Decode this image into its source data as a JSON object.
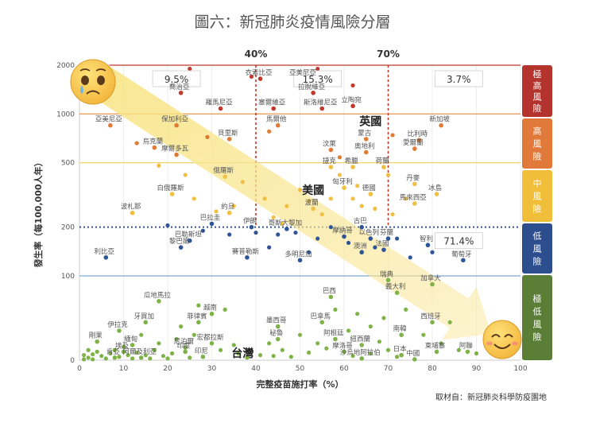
{
  "chart_data": {
    "type": "scatter",
    "title": "圖六：新冠肺炎疫情風險分層",
    "xlabel": "完整疫苗施打率（%）",
    "ylabel": "發生率（每100,000人年）",
    "source": "取材自：新冠肺炎科學防疫園地",
    "x_ticks": [
      0,
      10,
      20,
      30,
      40,
      50,
      60,
      70,
      80,
      90,
      100
    ],
    "y_ticks": [
      {
        "label": "2000",
        "value": 2000
      },
      {
        "label": "1000",
        "value": 1000
      },
      {
        "label": "500",
        "value": 500
      },
      {
        "label": "200",
        "value": 200
      },
      {
        "label": "100",
        "value": 100
      },
      {
        "label": "0",
        "value": 0
      }
    ],
    "xlim": [
      0,
      100
    ],
    "y_scale": "log-like (0 at bottom, 100–2000 logarithmic)",
    "thresholds": {
      "high_line": 1000,
      "mid_line": 500,
      "low_line": 200,
      "very_low_line": 100,
      "vacc_40": "40%",
      "vacc_70": "70%"
    },
    "region_percent_labels": [
      {
        "text": "9.5%",
        "x": 22,
        "y": 1650
      },
      {
        "text": "15.3%",
        "x": 54,
        "y": 1650
      },
      {
        "text": "3.7%",
        "x": 86,
        "y": 1650
      },
      {
        "text": "71.4%",
        "x": 86,
        "y": 165
      }
    ],
    "highlight_labels": [
      {
        "text": "英國",
        "x": 66,
        "y": 850
      },
      {
        "text": "美國",
        "x": 53,
        "y": 320
      },
      {
        "text": "台灣",
        "x": 37,
        "y": 4
      }
    ],
    "risk_levels": [
      {
        "label": "極高風險",
        "color": "#b5332d"
      },
      {
        "label": "高風險",
        "color": "#e0793a"
      },
      {
        "label": "中風險",
        "color": "#f1be3a"
      },
      {
        "label": "低風險",
        "color": "#2c4d8e"
      },
      {
        "label": "極低風險",
        "color": "#5b7e37"
      }
    ],
    "colors": {
      "very_high": "#c0392b",
      "high": "#e07a34",
      "medium": "#f0c044",
      "low": "#2f5597",
      "very_low": "#7fb348",
      "line_very_high": "#c0392b",
      "line_high": "#e8a060",
      "line_mid": "#f3d36e",
      "line_low": "#2f5597",
      "line_very_low": "#7ea6cc"
    },
    "labeled_points": [
      {
        "name": "衣索比亞",
        "x": 41,
        "y": 1650,
        "level": "very_high",
        "lx": -10,
        "ly": 0
      },
      {
        "name": "亞美尼亞",
        "x": 51,
        "y": 1650,
        "level": "very_high",
        "lx": 0,
        "ly": 0
      },
      {
        "name": "喬治亞",
        "x": 23,
        "y": 1350,
        "level": "very_high",
        "lx": 0,
        "ly": 0
      },
      {
        "name": "拉脫維亞",
        "x": 53,
        "y": 1350,
        "level": "very_high",
        "lx": 0,
        "ly": 0
      },
      {
        "name": "塞爾維亞",
        "x": 44,
        "y": 1080,
        "level": "very_high",
        "lx": 0,
        "ly": 0
      },
      {
        "name": "羅馬尼亞",
        "x": 32,
        "y": 1080,
        "level": "very_high",
        "lx": 0,
        "ly": 0
      },
      {
        "name": "斯洛維尼亞",
        "x": 55,
        "y": 1080,
        "level": "very_high",
        "lx": 0,
        "ly": 0
      },
      {
        "name": "立陶宛",
        "x": 62,
        "y": 1120,
        "level": "very_high",
        "lx": 0,
        "ly": 0
      },
      {
        "name": "亞美尼亞",
        "x": 7,
        "y": 850,
        "level": "high",
        "lx": 0,
        "ly": 0
      },
      {
        "name": "保加利亞",
        "x": 22,
        "y": 850,
        "level": "high",
        "lx": 0,
        "ly": 0
      },
      {
        "name": "馬爾他",
        "x": 45,
        "y": 850,
        "level": "high",
        "lx": 0,
        "ly": 0
      },
      {
        "name": "新加坡",
        "x": 82,
        "y": 850,
        "level": "high",
        "lx": 0,
        "ly": 0
      },
      {
        "name": "貝里斯",
        "x": 34,
        "y": 700,
        "level": "high",
        "lx": 0,
        "ly": 0
      },
      {
        "name": "蒙古",
        "x": 65,
        "y": 700,
        "level": "high",
        "lx": 0,
        "ly": 0
      },
      {
        "name": "比利時",
        "x": 77,
        "y": 690,
        "level": "high",
        "lx": 0,
        "ly": 0
      },
      {
        "name": "烏克蘭",
        "x": 17,
        "y": 620,
        "level": "high",
        "lx": 0,
        "ly": 0
      },
      {
        "name": "汶萊",
        "x": 57,
        "y": 600,
        "level": "high",
        "lx": 0,
        "ly": 0
      },
      {
        "name": "愛爾蘭",
        "x": 76,
        "y": 610,
        "level": "high",
        "lx": 0,
        "ly": 0
      },
      {
        "name": "奧地利",
        "x": 65,
        "y": 580,
        "level": "high",
        "lx": 0,
        "ly": 0
      },
      {
        "name": "摩爾多瓦",
        "x": 22,
        "y": 560,
        "level": "high",
        "lx": 0,
        "ly": 0
      },
      {
        "name": "捷克",
        "x": 57,
        "y": 470,
        "level": "medium",
        "lx": 0,
        "ly": 0
      },
      {
        "name": "希臘",
        "x": 62,
        "y": 470,
        "level": "medium",
        "lx": 0,
        "ly": 0
      },
      {
        "name": "荷蘭",
        "x": 69,
        "y": 470,
        "level": "medium",
        "lx": 0,
        "ly": 0
      },
      {
        "name": "俄羅斯",
        "x": 33,
        "y": 410,
        "level": "medium",
        "lx": 0,
        "ly": 0
      },
      {
        "name": "匈牙利",
        "x": 60,
        "y": 350,
        "level": "medium",
        "lx": 0,
        "ly": 0
      },
      {
        "name": "丹麥",
        "x": 76,
        "y": 370,
        "level": "medium",
        "lx": 0,
        "ly": 0
      },
      {
        "name": "白俄羅斯",
        "x": 21,
        "y": 320,
        "level": "medium",
        "lx": 0,
        "ly": 0
      },
      {
        "name": "德國",
        "x": 66,
        "y": 320,
        "level": "medium",
        "lx": 0,
        "ly": 0
      },
      {
        "name": "冰島",
        "x": 81,
        "y": 320,
        "level": "medium",
        "lx": 0,
        "ly": 0
      },
      {
        "name": "馬來西亞",
        "x": 76,
        "y": 280,
        "level": "medium",
        "lx": 0,
        "ly": 0
      },
      {
        "name": "波札那",
        "x": 12,
        "y": 245,
        "level": "medium",
        "lx": 0,
        "ly": 0
      },
      {
        "name": "約旦",
        "x": 34,
        "y": 245,
        "level": "medium",
        "lx": 0,
        "ly": 0
      },
      {
        "name": "波蘭",
        "x": 53,
        "y": 260,
        "level": "medium",
        "lx": 0,
        "ly": 0
      },
      {
        "name": "巴拉圭",
        "x": 30,
        "y": 210,
        "level": "low",
        "lx": 0,
        "ly": 0
      },
      {
        "name": "伊朗",
        "x": 39,
        "y": 200,
        "level": "low",
        "lx": 0,
        "ly": 0
      },
      {
        "name": "哥斯大黎加",
        "x": 47,
        "y": 195,
        "level": "low",
        "lx": 0,
        "ly": 0
      },
      {
        "name": "古巴",
        "x": 64,
        "y": 200,
        "level": "low",
        "lx": 0,
        "ly": 0
      },
      {
        "name": "摩納哥",
        "x": 60,
        "y": 175,
        "level": "low",
        "lx": 0,
        "ly": 0
      },
      {
        "name": "以色列",
        "x": 66,
        "y": 170,
        "level": "low",
        "lx": 0,
        "ly": 0
      },
      {
        "name": "芬蘭",
        "x": 70,
        "y": 170,
        "level": "low",
        "lx": 0,
        "ly": 0
      },
      {
        "name": "巴勒斯坦",
        "x": 25,
        "y": 165,
        "level": "low",
        "lx": 0,
        "ly": 0
      },
      {
        "name": "黎巴嫩",
        "x": 23,
        "y": 150,
        "level": "low",
        "lx": 0,
        "ly": 0
      },
      {
        "name": "法國",
        "x": 69,
        "y": 145,
        "level": "low",
        "lx": 0,
        "ly": 0
      },
      {
        "name": "澳洲",
        "x": 64,
        "y": 140,
        "level": "low",
        "lx": 0,
        "ly": 0
      },
      {
        "name": "智利",
        "x": 79,
        "y": 155,
        "level": "low",
        "lx": 0,
        "ly": 0
      },
      {
        "name": "利比亞",
        "x": 6,
        "y": 130,
        "level": "low",
        "lx": 0,
        "ly": 0
      },
      {
        "name": "賽普勒斯",
        "x": 38,
        "y": 130,
        "level": "low",
        "lx": 0,
        "ly": 0
      },
      {
        "name": "多明尼加",
        "x": 50,
        "y": 125,
        "level": "low",
        "lx": 0,
        "ly": 0
      },
      {
        "name": "葡萄牙",
        "x": 87,
        "y": 125,
        "level": "low",
        "lx": 0,
        "ly": 0
      },
      {
        "name": "瑞典",
        "x": 70,
        "y": 95,
        "level": "very_low",
        "lx": 0,
        "ly": 0
      },
      {
        "name": "加拿大",
        "x": 80,
        "y": 90,
        "level": "very_low",
        "lx": 0,
        "ly": 0
      },
      {
        "name": "義大利",
        "x": 72,
        "y": 80,
        "level": "very_low",
        "lx": 0,
        "ly": 0
      },
      {
        "name": "瓜地馬拉",
        "x": 18,
        "y": 70,
        "level": "very_low",
        "lx": 0,
        "ly": 0
      },
      {
        "name": "巴西",
        "x": 57,
        "y": 75,
        "level": "very_low",
        "lx": 0,
        "ly": 0
      },
      {
        "name": "越南",
        "x": 30,
        "y": 55,
        "level": "very_low",
        "lx": 0,
        "ly": 0
      },
      {
        "name": "牙買加",
        "x": 15,
        "y": 45,
        "level": "very_low",
        "lx": 0,
        "ly": 0
      },
      {
        "name": "菲律賓",
        "x": 27,
        "y": 45,
        "level": "very_low",
        "lx": 0,
        "ly": 0
      },
      {
        "name": "墨西哥",
        "x": 45,
        "y": 40,
        "level": "very_low",
        "lx": 0,
        "ly": 0
      },
      {
        "name": "巴拿馬",
        "x": 55,
        "y": 45,
        "level": "very_low",
        "lx": 0,
        "ly": 0
      },
      {
        "name": "西班牙",
        "x": 80,
        "y": 45,
        "level": "very_low",
        "lx": 0,
        "ly": 0
      },
      {
        "name": "伊拉克",
        "x": 9,
        "y": 35,
        "level": "very_low",
        "lx": 0,
        "ly": 0
      },
      {
        "name": "南韓",
        "x": 73,
        "y": 30,
        "level": "very_low",
        "lx": 0,
        "ly": 0
      },
      {
        "name": "秘魯",
        "x": 45,
        "y": 25,
        "level": "very_low",
        "lx": 0,
        "ly": 0
      },
      {
        "name": "阿根廷",
        "x": 58,
        "y": 25,
        "level": "very_low",
        "lx": 0,
        "ly": 0
      },
      {
        "name": "剛果",
        "x": 4,
        "y": 22,
        "level": "very_low",
        "lx": 0,
        "ly": 0
      },
      {
        "name": "緬甸",
        "x": 12,
        "y": 18,
        "level": "very_low",
        "lx": 0,
        "ly": 0
      },
      {
        "name": "宏都拉斯",
        "x": 30,
        "y": 20,
        "level": "very_low",
        "lx": 0,
        "ly": 0
      },
      {
        "name": "紐西蘭",
        "x": 64,
        "y": 18,
        "level": "very_low",
        "lx": 0,
        "ly": 0
      },
      {
        "name": "尼泊爾",
        "x": 24,
        "y": 15,
        "level": "very_low",
        "lx": 0,
        "ly": 0
      },
      {
        "name": "埃及",
        "x": 10,
        "y": 10,
        "level": "very_low",
        "lx": 0,
        "ly": 0
      },
      {
        "name": "印度",
        "x": 24,
        "y": 10,
        "level": "very_low",
        "lx": 0,
        "ly": 0
      },
      {
        "name": "摩洛哥",
        "x": 60,
        "y": 10,
        "level": "very_low",
        "lx": 0,
        "ly": 0
      },
      {
        "name": "柬埔寨",
        "x": 81,
        "y": 10,
        "level": "very_low",
        "lx": 0,
        "ly": 0
      },
      {
        "name": "阿聯",
        "x": 88,
        "y": 10,
        "level": "very_low",
        "lx": 0,
        "ly": 0
      },
      {
        "name": "肯亞",
        "x": 8,
        "y": 3,
        "level": "very_low",
        "lx": 0,
        "ly": 0
      },
      {
        "name": "阿爾及利亞",
        "x": 14,
        "y": 3,
        "level": "very_low",
        "lx": 0,
        "ly": 0
      },
      {
        "name": "印尼",
        "x": 28,
        "y": 4,
        "level": "very_low",
        "lx": 0,
        "ly": 0
      },
      {
        "name": "沙烏地阿拉伯",
        "x": 64,
        "y": 2,
        "level": "very_low",
        "lx": 0,
        "ly": 0
      },
      {
        "name": "日本",
        "x": 73,
        "y": 6,
        "level": "very_low",
        "lx": 0,
        "ly": 0
      },
      {
        "name": "中國",
        "x": 76,
        "y": 1,
        "level": "very_low",
        "lx": 0,
        "ly": 0
      }
    ],
    "unlabeled_points": [
      [
        25,
        1900,
        "very_high"
      ],
      [
        54,
        1900,
        "very_high"
      ],
      [
        62,
        1500,
        "very_high"
      ],
      [
        39,
        1700,
        "very_high"
      ],
      [
        13,
        660,
        "high"
      ],
      [
        29,
        720,
        "high"
      ],
      [
        43,
        780,
        "high"
      ],
      [
        71,
        740,
        "high"
      ],
      [
        59,
        540,
        "high"
      ],
      [
        18,
        480,
        "medium"
      ],
      [
        24,
        420,
        "medium"
      ],
      [
        37,
        380,
        "medium"
      ],
      [
        42,
        300,
        "medium"
      ],
      [
        47,
        270,
        "medium"
      ],
      [
        52,
        290,
        "medium"
      ],
      [
        57,
        300,
        "medium"
      ],
      [
        62,
        300,
        "medium"
      ],
      [
        64,
        270,
        "medium"
      ],
      [
        67,
        260,
        "medium"
      ],
      [
        71,
        240,
        "medium"
      ],
      [
        74,
        300,
        "medium"
      ],
      [
        59,
        420,
        "medium"
      ],
      [
        35,
        270,
        "medium"
      ],
      [
        44,
        230,
        "medium"
      ],
      [
        50,
        340,
        "medium"
      ],
      [
        55,
        240,
        "medium"
      ],
      [
        63,
        360,
        "medium"
      ],
      [
        70,
        420,
        "medium"
      ],
      [
        26,
        300,
        "medium"
      ],
      [
        31,
        250,
        "medium"
      ],
      [
        46,
        210,
        "medium"
      ],
      [
        20,
        205,
        "low"
      ],
      [
        28,
        190,
        "low"
      ],
      [
        34,
        180,
        "low"
      ],
      [
        40,
        185,
        "low"
      ],
      [
        45,
        180,
        "low"
      ],
      [
        49,
        185,
        "low"
      ],
      [
        54,
        170,
        "low"
      ],
      [
        57,
        200,
        "low"
      ],
      [
        61,
        160,
        "low"
      ],
      [
        67,
        150,
        "low"
      ],
      [
        72,
        170,
        "low"
      ],
      [
        80,
        140,
        "low"
      ],
      [
        43,
        150,
        "low"
      ],
      [
        52,
        140,
        "low"
      ],
      [
        75,
        130,
        "low"
      ],
      [
        2,
        3,
        "very_low"
      ],
      [
        1,
        6,
        "very_low"
      ],
      [
        3,
        1,
        "very_low"
      ],
      [
        5,
        5,
        "very_low"
      ],
      [
        6,
        2,
        "very_low"
      ],
      [
        7,
        8,
        "very_low"
      ],
      [
        2,
        12,
        "very_low"
      ],
      [
        4,
        10,
        "very_low"
      ],
      [
        1,
        1,
        "very_low"
      ],
      [
        3,
        7,
        "very_low"
      ],
      [
        9,
        4,
        "very_low"
      ],
      [
        11,
        6,
        "very_low"
      ],
      [
        12,
        2,
        "very_low"
      ],
      [
        13,
        9,
        "very_low"
      ],
      [
        15,
        6,
        "very_low"
      ],
      [
        16,
        2,
        "very_low"
      ],
      [
        17,
        12,
        "very_low"
      ],
      [
        19,
        5,
        "very_low"
      ],
      [
        21,
        8,
        "very_low"
      ],
      [
        20,
        2,
        "very_low"
      ],
      [
        22,
        25,
        "very_low"
      ],
      [
        26,
        30,
        "very_low"
      ],
      [
        27,
        65,
        "very_low"
      ],
      [
        33,
        60,
        "very_low"
      ],
      [
        32,
        12,
        "very_low"
      ],
      [
        35,
        18,
        "very_low"
      ],
      [
        36,
        8,
        "very_low"
      ],
      [
        41,
        6,
        "very_low"
      ],
      [
        43,
        20,
        "very_low"
      ],
      [
        46,
        12,
        "very_low"
      ],
      [
        48,
        4,
        "very_low"
      ],
      [
        52,
        9,
        "very_low"
      ],
      [
        56,
        14,
        "very_low"
      ],
      [
        58,
        60,
        "very_low"
      ],
      [
        61,
        35,
        "very_low"
      ],
      [
        63,
        55,
        "very_low"
      ],
      [
        66,
        40,
        "very_low"
      ],
      [
        68,
        22,
        "very_low"
      ],
      [
        69,
        50,
        "very_low"
      ],
      [
        70,
        12,
        "very_low"
      ],
      [
        74,
        60,
        "very_low"
      ],
      [
        78,
        30,
        "very_low"
      ],
      [
        82,
        20,
        "very_low"
      ],
      [
        84,
        45,
        "very_low"
      ],
      [
        86,
        12,
        "very_low"
      ],
      [
        90,
        8,
        "very_low"
      ],
      [
        18,
        20,
        "very_low"
      ],
      [
        23,
        40,
        "very_low"
      ],
      [
        10,
        16,
        "very_low"
      ],
      [
        14,
        30,
        "very_low"
      ],
      [
        50,
        30,
        "very_low"
      ],
      [
        54,
        20,
        "very_low"
      ],
      [
        62,
        5,
        "very_low"
      ],
      [
        66,
        8,
        "very_low"
      ],
      [
        72,
        4,
        "very_low"
      ],
      [
        38,
        3,
        "very_low"
      ],
      [
        44,
        5,
        "very_low"
      ],
      [
        8,
        12,
        "very_low"
      ],
      [
        25,
        3,
        "very_low"
      ]
    ]
  }
}
